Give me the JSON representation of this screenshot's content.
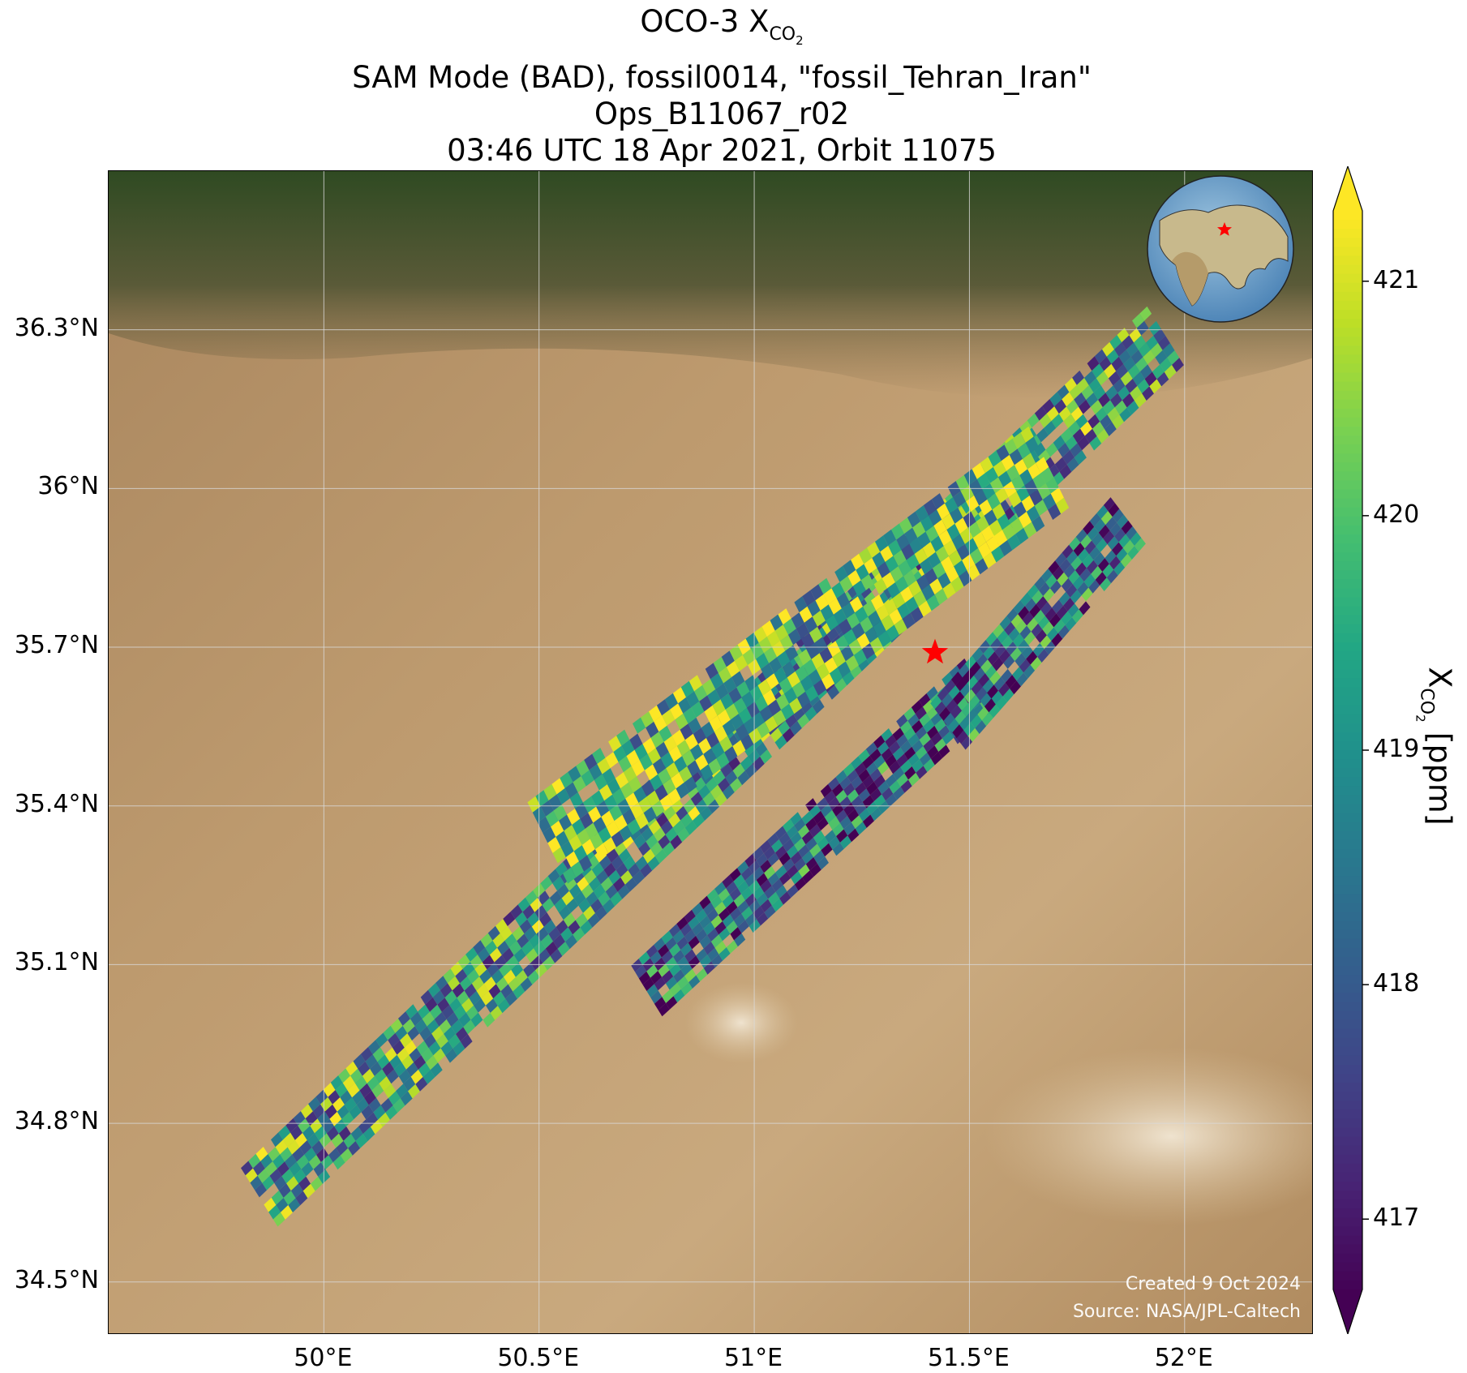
{
  "title": {
    "line1_prefix": "OCO-3 X",
    "line1_sub": "CO",
    "line1_sub2": "2",
    "line2": "SAM Mode (BAD), fossil0014, \"fossil_Tehran_Iran\"",
    "line3": "Ops_B11067_r02",
    "line4": "03:46 UTC 18 Apr 2021, Orbit 11075"
  },
  "axes": {
    "lat_ticks": [
      "36.3°N",
      "36°N",
      "35.7°N",
      "35.4°N",
      "35.1°N",
      "34.8°N",
      "34.5°N"
    ],
    "lon_ticks": [
      "50°E",
      "50.5°E",
      "51°E",
      "51.5°E",
      "52°E"
    ],
    "lat_values": [
      36.3,
      36.0,
      35.7,
      35.4,
      35.1,
      34.8,
      34.5
    ],
    "lon_values": [
      50.0,
      50.5,
      51.0,
      51.5,
      52.0
    ],
    "lon_range": [
      49.5,
      52.3
    ],
    "lat_range": [
      34.4,
      36.6
    ]
  },
  "colorbar": {
    "label_prefix": "X",
    "label_sub": "CO",
    "label_sub2": "2",
    "label_suffix": " [ppm]",
    "ticks": [
      "421",
      "420",
      "419",
      "418",
      "417"
    ],
    "tick_values": [
      421,
      420,
      419,
      418,
      417
    ],
    "range": [
      416.7,
      421.3
    ],
    "colormap": "viridis",
    "extend": "both"
  },
  "target": {
    "name": "fossil_Tehran_Iran",
    "lon": 51.42,
    "lat": 35.69,
    "marker": "red-star",
    "color": "#ff0000"
  },
  "credits": {
    "created": "Created 9 Oct 2024",
    "source": "Source: NASA/JPL-Caltech"
  },
  "inset": {
    "type": "globe",
    "marker": "red-star"
  },
  "chart_data": {
    "type": "heatmap",
    "description_units": "XCO2 ppm",
    "swaths": [
      {
        "name": "swath-main",
        "start": [
          49.85,
          34.66
        ],
        "end": [
          51.97,
          36.3
        ],
        "width_deg": 0.14,
        "mean": 419.2
      },
      {
        "name": "swath-middle",
        "start": [
          50.52,
          35.33
        ],
        "end": [
          51.7,
          36.05
        ],
        "width_deg": 0.18,
        "mean": 419.8
      },
      {
        "name": "swath-lower",
        "start": [
          50.75,
          35.05
        ],
        "end": [
          51.55,
          35.65
        ],
        "width_deg": 0.12,
        "mean": 418.3
      },
      {
        "name": "swath-east",
        "start": [
          51.45,
          35.55
        ],
        "end": [
          51.88,
          35.95
        ],
        "width_deg": 0.12,
        "mean": 418.4
      }
    ]
  }
}
